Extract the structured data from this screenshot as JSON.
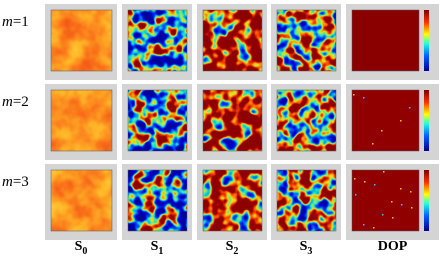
{
  "rows": [
    {
      "variable": "m",
      "rest": "=1"
    },
    {
      "variable": "m",
      "rest": "=2"
    },
    {
      "variable": "m",
      "rest": "=3"
    }
  ],
  "columns": [
    {
      "symbol": "S",
      "index": "0"
    },
    {
      "symbol": "S",
      "index": "1"
    },
    {
      "symbol": "S",
      "index": "2"
    },
    {
      "symbol": "S",
      "index": "3"
    },
    {
      "symbol": "DOP"
    }
  ]
}
